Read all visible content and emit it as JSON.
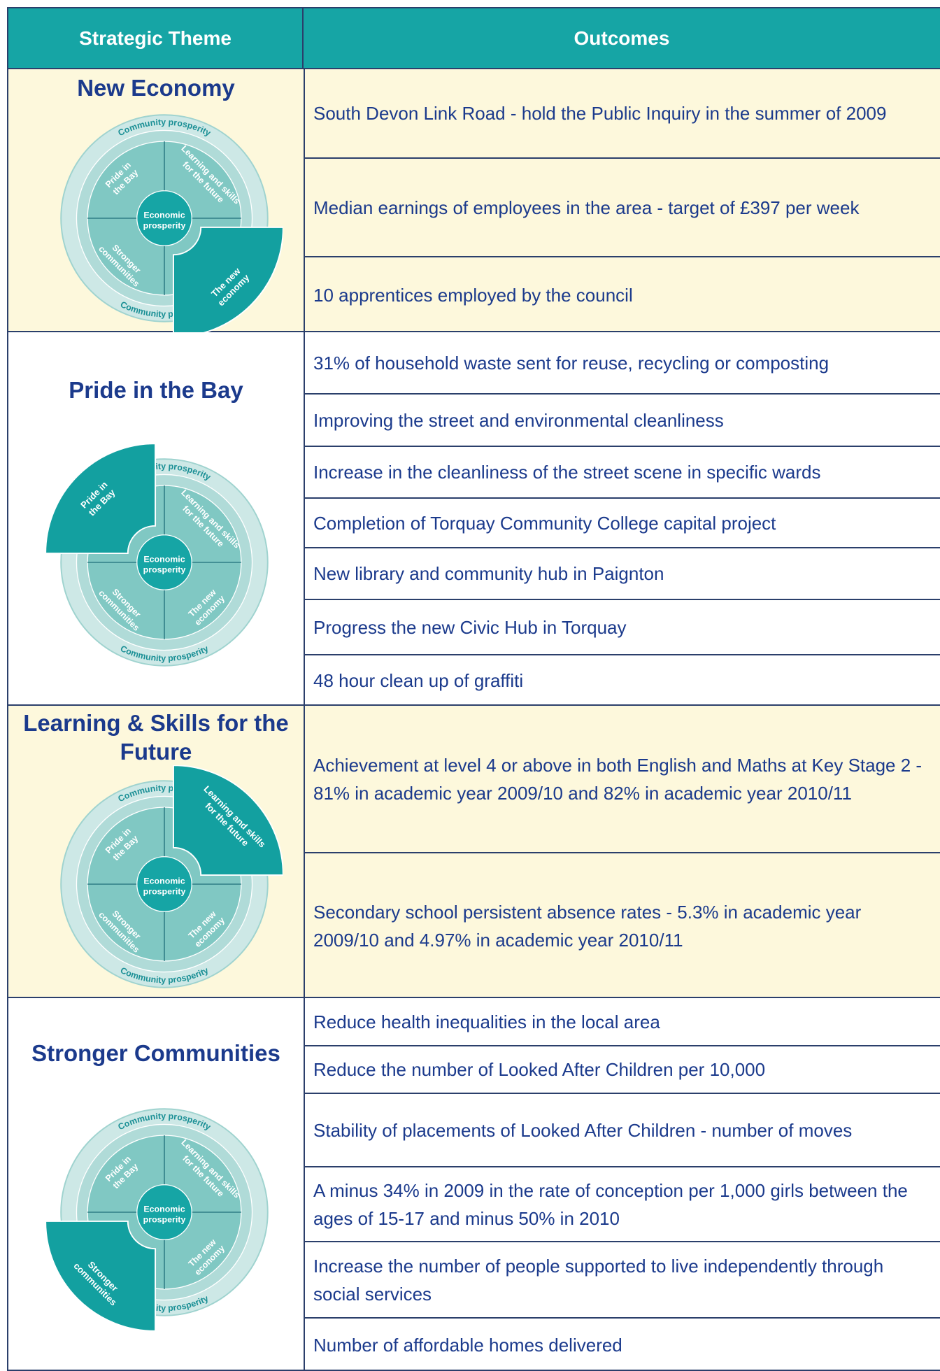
{
  "header": {
    "theme": "Strategic Theme",
    "outcomes": "Outcomes"
  },
  "diagram": {
    "ring": "Community prosperity",
    "center": [
      "Economic",
      "prosperity"
    ],
    "pride": [
      "Pride in",
      "the Bay"
    ],
    "learning": [
      "Learning and skills",
      "for the future"
    ],
    "stronger": [
      "Stronger",
      "communities"
    ],
    "economy": [
      "The new",
      "economy"
    ]
  },
  "sections": [
    {
      "theme": "New Economy",
      "outcomes": [
        "South Devon Link Road - hold the Public Inquiry in the summer of 2009",
        "Median earnings of employees in the area - target of £397 per week",
        "10 apprentices employed by the council"
      ]
    },
    {
      "theme": "Pride in the Bay",
      "outcomes": [
        "31% of household waste sent for reuse, recycling or composting",
        "Improving the street and environmental cleanliness",
        "Increase in the cleanliness of the street scene in specific wards",
        "Completion of Torquay Community College capital project",
        "New library and community hub in Paignton",
        "Progress the new Civic Hub in Torquay",
        "48 hour clean up of graffiti"
      ]
    },
    {
      "theme": "Learning & Skills for the Future",
      "outcomes": [
        "Achievement at level 4 or above in both English and Maths at Key Stage 2 - 81% in academic year 2009/10 and 82% in academic year 2010/11",
        "Secondary school persistent absence rates - 5.3% in academic year 2009/10 and 4.97% in academic year 2010/11"
      ]
    },
    {
      "theme": "Stronger Communities",
      "outcomes": [
        "Reduce health inequalities in the local area",
        "Reduce the number of Looked After Children per 10,000",
        "Stability of placements of Looked After Children - number of moves",
        "A minus 34% in 2009 in the rate of conception per 1,000 girls between the ages of 15-17 and minus 50% in 2010",
        "Increase the number of people supported to live independently through social services",
        "Number of affordable homes delivered"
      ]
    }
  ]
}
